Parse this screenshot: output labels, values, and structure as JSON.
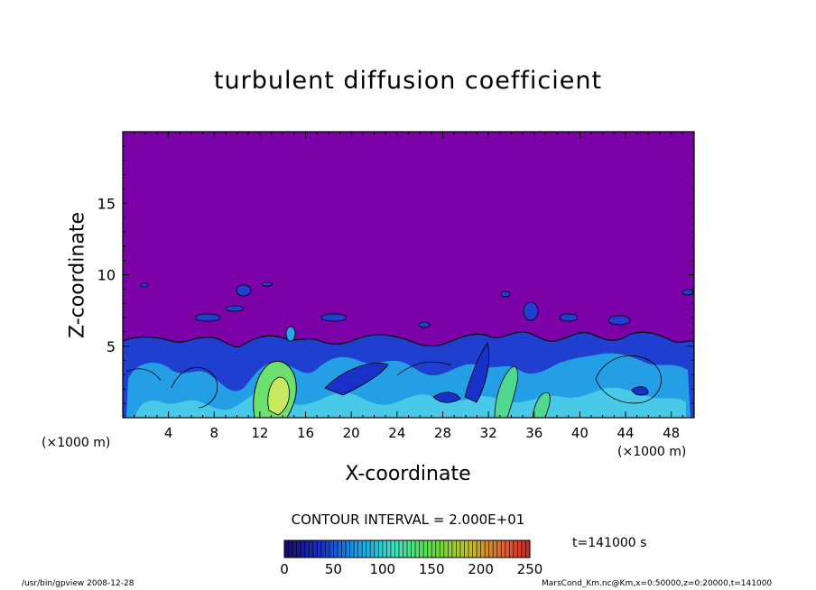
{
  "chart_data": {
    "type": "heatmap",
    "title": "turbulent diffusion coefficient",
    "xlabel": "X-coordinate",
    "ylabel": "Z-coordinate",
    "x_unit_left": "(×1000 m)",
    "x_unit_right": "(×1000 m)",
    "xlim": [
      0,
      50
    ],
    "ylim": [
      0,
      20
    ],
    "x_ticks": [
      "4",
      "8",
      "12",
      "16",
      "20",
      "24",
      "28",
      "32",
      "36",
      "40",
      "44",
      "48"
    ],
    "y_ticks": [
      "5",
      "10",
      "15"
    ],
    "x_tick_values": [
      4,
      8,
      12,
      16,
      20,
      24,
      28,
      32,
      36,
      40,
      44,
      48
    ],
    "y_tick_values": [
      5,
      10,
      15
    ],
    "contour_interval": "CONTOUR INTERVAL = 2.000E+01",
    "colorbar": {
      "min": 0,
      "max": 250,
      "ticks": [
        "0",
        "50",
        "100",
        "150",
        "200",
        "250"
      ],
      "tick_values": [
        0,
        50,
        100,
        150,
        200,
        250
      ]
    },
    "background_value_color": "#7b00a8",
    "turbulent_layer_top_km": 5.5,
    "time_label": "t=141000 s"
  },
  "footer": {
    "left": "/usr/bin/gpview   2008-12-28",
    "right": "MarsCond_Km.nc@Km,x=0:50000,z=0:20000,t=141000"
  }
}
